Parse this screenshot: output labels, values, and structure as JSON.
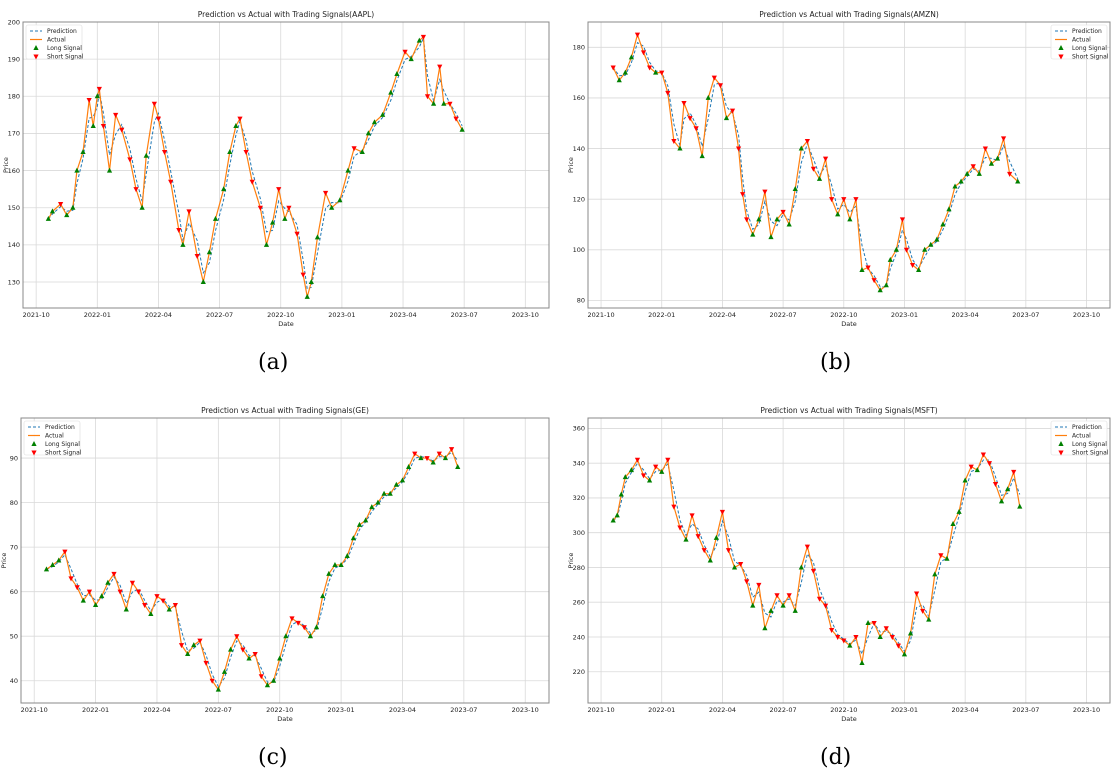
{
  "colors": {
    "prediction": "#1f77b4",
    "actual": "#ff7f0e",
    "long": "#008000",
    "short": "#ff0000",
    "grid": "#d9d9d9"
  },
  "chart_data": [
    {
      "type": "line",
      "caption": "(a)",
      "title": "Prediction vs Actual with Trading Signals(AAPL)",
      "xlabel": "Date",
      "ylabel": "Price",
      "xticks": [
        "2021-10",
        "2022-01",
        "2022-04",
        "2022-07",
        "2022-10",
        "2023-01",
        "2023-04",
        "2023-07",
        "2023-10"
      ],
      "yticks": [
        130,
        140,
        150,
        160,
        170,
        180,
        190,
        200
      ],
      "ylim": [
        123,
        200
      ],
      "grid": true,
      "legend": "top-left",
      "legend_labels": [
        "Prediction",
        "Actual",
        "Long Signal",
        "Short Signal"
      ],
      "x_months_since_2021_10": [
        0.6,
        0.8,
        1.2,
        1.5,
        1.8,
        2.0,
        2.3,
        2.6,
        2.8,
        3.0,
        3.1,
        3.3,
        3.6,
        3.9,
        4.2,
        4.6,
        4.9,
        5.2,
        5.4,
        5.8,
        6.0,
        6.3,
        6.6,
        7.0,
        7.2,
        7.5,
        7.9,
        8.2,
        8.5,
        8.8,
        9.2,
        9.5,
        9.8,
        10.0,
        10.3,
        10.6,
        11.0,
        11.3,
        11.6,
        11.9,
        12.2,
        12.4,
        12.8,
        13.1,
        13.3,
        13.5,
        13.8,
        14.2,
        14.5,
        14.9,
        15.3,
        15.6,
        16.0,
        16.3,
        16.6,
        17.0,
        17.4,
        17.7,
        18.1,
        18.4,
        18.8,
        19.0,
        19.2,
        19.5,
        19.8,
        20.0,
        20.3,
        20.6,
        20.9
      ],
      "actual": [
        147,
        149,
        151,
        148,
        150,
        160,
        165,
        179,
        172,
        180,
        182,
        172,
        160,
        175,
        171,
        163,
        155,
        150,
        164,
        178,
        174,
        165,
        157,
        144,
        140,
        149,
        137,
        130,
        138,
        147,
        155,
        165,
        172,
        174,
        165,
        157,
        150,
        140,
        146,
        155,
        147,
        150,
        143,
        132,
        126,
        130,
        142,
        154,
        150,
        152,
        160,
        166,
        165,
        170,
        173,
        175,
        181,
        186,
        192,
        190,
        195,
        196,
        180,
        178,
        188,
        178,
        178,
        174,
        171
      ]
    },
    {
      "type": "line",
      "caption": "(b)",
      "title": "Prediction vs Actual with Trading Signals(AMZN)",
      "xlabel": "Date",
      "ylabel": "Price",
      "xticks": [
        "2021-10",
        "2022-01",
        "2022-04",
        "2022-07",
        "2022-10",
        "2023-01",
        "2023-04",
        "2023-07",
        "2023-10"
      ],
      "yticks": [
        80,
        100,
        120,
        140,
        160,
        180
      ],
      "ylim": [
        77,
        190
      ],
      "grid": true,
      "legend": "top-right",
      "legend_labels": [
        "Prediction",
        "Actual",
        "Long Signal",
        "Short Signal"
      ],
      "x_months_since_2021_10": [
        0.6,
        0.9,
        1.2,
        1.5,
        1.8,
        2.1,
        2.4,
        2.7,
        3.0,
        3.3,
        3.6,
        3.9,
        4.1,
        4.4,
        4.7,
        5.0,
        5.3,
        5.6,
        5.9,
        6.2,
        6.5,
        6.8,
        7.0,
        7.2,
        7.5,
        7.8,
        8.1,
        8.4,
        8.7,
        9.0,
        9.3,
        9.6,
        9.9,
        10.2,
        10.5,
        10.8,
        11.1,
        11.4,
        11.7,
        12.0,
        12.3,
        12.6,
        12.9,
        13.2,
        13.5,
        13.8,
        14.1,
        14.3,
        14.6,
        14.9,
        15.1,
        15.4,
        15.7,
        16.0,
        16.3,
        16.6,
        16.9,
        17.2,
        17.5,
        17.8,
        18.1,
        18.4,
        18.7,
        19.0,
        19.3,
        19.6,
        19.9,
        20.2,
        20.6
      ],
      "actual": [
        172,
        167,
        170,
        176,
        185,
        178,
        172,
        170,
        170,
        162,
        143,
        140,
        158,
        152,
        148,
        137,
        160,
        168,
        165,
        152,
        155,
        140,
        122,
        112,
        106,
        112,
        123,
        105,
        112,
        115,
        110,
        124,
        140,
        143,
        132,
        128,
        136,
        120,
        114,
        120,
        112,
        120,
        92,
        93,
        88,
        84,
        86,
        96,
        100,
        112,
        100,
        94,
        92,
        100,
        102,
        104,
        110,
        116,
        125,
        127,
        130,
        133,
        130,
        140,
        134,
        136,
        144,
        130,
        127
      ]
    },
    {
      "type": "line",
      "caption": "(c)",
      "title": "Prediction vs Actual with Trading Signals(GE)",
      "xlabel": "Date",
      "ylabel": "Price",
      "xticks": [
        "2021-10",
        "2022-01",
        "2022-04",
        "2022-07",
        "2022-10",
        "2023-01",
        "2023-04",
        "2023-07",
        "2023-10"
      ],
      "yticks": [
        40,
        50,
        60,
        70,
        80,
        90
      ],
      "ylim": [
        35,
        99
      ],
      "grid": true,
      "legend": "top-left",
      "legend_labels": [
        "Prediction",
        "Actual",
        "Long Signal",
        "Short Signal"
      ],
      "x_months_since_2021_10": [
        0.6,
        0.9,
        1.2,
        1.5,
        1.8,
        2.1,
        2.4,
        2.7,
        3.0,
        3.3,
        3.6,
        3.9,
        4.2,
        4.5,
        4.8,
        5.1,
        5.4,
        5.7,
        6.0,
        6.3,
        6.6,
        6.9,
        7.2,
        7.5,
        7.8,
        8.1,
        8.4,
        8.7,
        9.0,
        9.3,
        9.6,
        9.9,
        10.2,
        10.5,
        10.8,
        11.1,
        11.4,
        11.7,
        12.0,
        12.3,
        12.6,
        12.9,
        13.2,
        13.5,
        13.8,
        14.1,
        14.4,
        14.7,
        15.0,
        15.3,
        15.6,
        15.9,
        16.2,
        16.5,
        16.8,
        17.1,
        17.4,
        17.7,
        18.0,
        18.3,
        18.6,
        18.9,
        19.2,
        19.5,
        19.8,
        20.1,
        20.4,
        20.7
      ],
      "actual": [
        65,
        66,
        67,
        69,
        63,
        61,
        58,
        60,
        57,
        59,
        62,
        64,
        60,
        56,
        62,
        60,
        57,
        55,
        59,
        58,
        56,
        57,
        48,
        46,
        48,
        49,
        44,
        40,
        38,
        42,
        47,
        50,
        47,
        45,
        46,
        41,
        39,
        40,
        45,
        50,
        54,
        53,
        52,
        50,
        52,
        59,
        64,
        66,
        66,
        68,
        72,
        75,
        76,
        79,
        80,
        82,
        82,
        84,
        85,
        88,
        91,
        90,
        90,
        89,
        91,
        90,
        92,
        88
      ]
    },
    {
      "type": "line",
      "caption": "(d)",
      "title": "Prediction vs Actual with Trading Signals(MSFT)",
      "xlabel": "Date",
      "ylabel": "Price",
      "xticks": [
        "2021-10",
        "2022-01",
        "2022-04",
        "2022-07",
        "2022-10",
        "2023-01",
        "2023-04",
        "2023-07",
        "2023-10"
      ],
      "yticks": [
        220,
        240,
        260,
        280,
        300,
        320,
        340,
        360
      ],
      "ylim": [
        202,
        366
      ],
      "grid": true,
      "legend": "top-right",
      "legend_labels": [
        "Prediction",
        "Actual",
        "Long Signal",
        "Short Signal"
      ],
      "x_months_since_2021_10": [
        0.6,
        0.8,
        1.0,
        1.2,
        1.5,
        1.8,
        2.1,
        2.4,
        2.7,
        3.0,
        3.3,
        3.6,
        3.9,
        4.2,
        4.5,
        4.8,
        5.1,
        5.4,
        5.7,
        6.0,
        6.3,
        6.6,
        6.9,
        7.2,
        7.5,
        7.8,
        8.1,
        8.4,
        8.7,
        9.0,
        9.3,
        9.6,
        9.9,
        10.2,
        10.5,
        10.8,
        11.1,
        11.4,
        11.7,
        12.0,
        12.3,
        12.6,
        12.9,
        13.2,
        13.5,
        13.8,
        14.1,
        14.4,
        14.7,
        15.0,
        15.3,
        15.6,
        15.9,
        16.2,
        16.5,
        16.8,
        17.1,
        17.4,
        17.7,
        18.0,
        18.3,
        18.6,
        18.9,
        19.2,
        19.5,
        19.8,
        20.1,
        20.4,
        20.7
      ],
      "actual": [
        307,
        310,
        322,
        332,
        336,
        342,
        333,
        330,
        338,
        335,
        342,
        315,
        303,
        296,
        310,
        298,
        290,
        284,
        297,
        312,
        290,
        280,
        282,
        272,
        258,
        270,
        245,
        255,
        264,
        258,
        264,
        255,
        280,
        292,
        278,
        262,
        258,
        244,
        240,
        238,
        235,
        240,
        225,
        248,
        248,
        240,
        245,
        240,
        235,
        230,
        242,
        265,
        255,
        250,
        276,
        287,
        285,
        305,
        312,
        330,
        338,
        336,
        345,
        340,
        328,
        318,
        325,
        335,
        315
      ]
    }
  ]
}
